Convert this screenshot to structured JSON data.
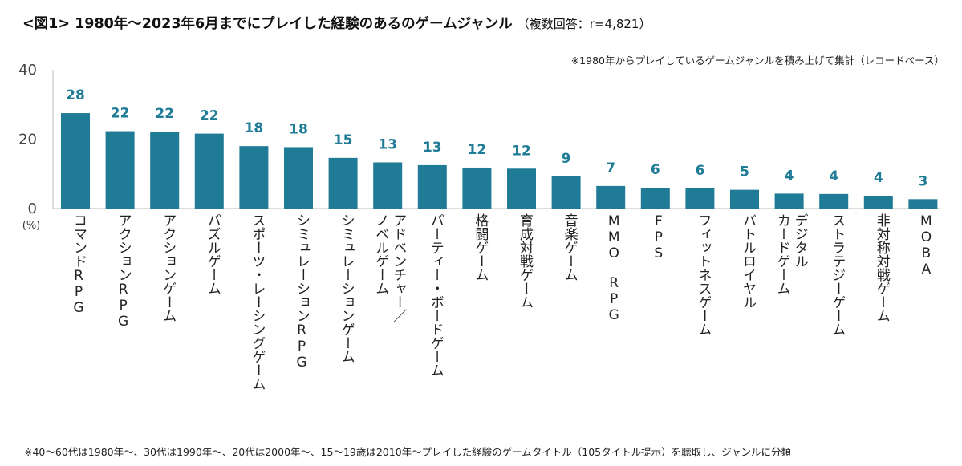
{
  "title": {
    "main": "<図1> 1980年～2023年6月までにプレイした経験のあるのゲームジャンル",
    "sub": "（複数回答：r=4,821）"
  },
  "note": "※1980年からプレイしているゲームジャンルを積み上げて集計（レコードベース）",
  "footnote": "※40～60代は1980年～、30代は1990年～、20代は2000年～、15～19歳は2010年～プレイした経験のゲームタイトル（105タイトル提示）を聴取し、ジャンルに分類",
  "colors": {
    "bar": "#1f7b96",
    "value_label": "#1f7b96",
    "axis": "#bbbbbb"
  },
  "chart_data": {
    "type": "bar",
    "title": "<図1> 1980年～2023年6月までにプレイした経験のあるのゲームジャンル",
    "xlabel": "",
    "ylabel": "(%)",
    "ylim": [
      0,
      40
    ],
    "yticks": [
      0,
      20,
      40
    ],
    "grid": false,
    "categories": [
      "コマンドRPG",
      "アクションRPG",
      "アクションゲーム",
      "パズルゲーム",
      "スポーツ・レーシングゲーム",
      "シミュレーションRPG",
      "シミュレーションゲーム",
      "アドベンチャー／ノベルゲーム",
      "パーティー・ボードゲーム",
      "格闘ゲーム",
      "育成対戦ゲーム",
      "音楽ゲーム",
      "MMO RPG",
      "FPS",
      "フィットネスゲーム",
      "バトルロイヤル",
      "デジタルカードゲーム",
      "ストラテジーゲーム",
      "非対称対戦ゲーム",
      "MOBA"
    ],
    "category_lines": [
      [
        "コマンドRPG"
      ],
      [
        "アクションRPG"
      ],
      [
        "アクションゲーム"
      ],
      [
        "パズルゲーム"
      ],
      [
        "スポーツ・レーシングゲーム"
      ],
      [
        "シミュレーションRPG"
      ],
      [
        "シミュレーションゲーム"
      ],
      [
        "アドベンチャー／",
        "ノベルゲーム"
      ],
      [
        "パーティー・ボードゲーム"
      ],
      [
        "格闘ゲーム"
      ],
      [
        "育成対戦ゲーム"
      ],
      [
        "音楽ゲーム"
      ],
      [
        "MMO　RPG"
      ],
      [
        "FPS"
      ],
      [
        "フィットネスゲーム"
      ],
      [
        "バトルロイヤル"
      ],
      [
        "デジタル",
        "カードゲーム"
      ],
      [
        "ストラテジーゲーム"
      ],
      [
        "非対称対戦ゲーム"
      ],
      [
        "MOBA"
      ]
    ],
    "values": [
      27.5,
      22.3,
      22.2,
      21.6,
      18.0,
      17.7,
      14.6,
      13.3,
      12.5,
      11.8,
      11.5,
      9.3,
      6.5,
      6.0,
      5.8,
      5.4,
      4.3,
      4.2,
      3.7,
      2.7
    ],
    "labels": [
      "28",
      "22",
      "22",
      "22",
      "18",
      "18",
      "15",
      "13",
      "13",
      "12",
      "12",
      "9",
      "7",
      "6",
      "6",
      "5",
      "4",
      "4",
      "4",
      "3"
    ]
  }
}
